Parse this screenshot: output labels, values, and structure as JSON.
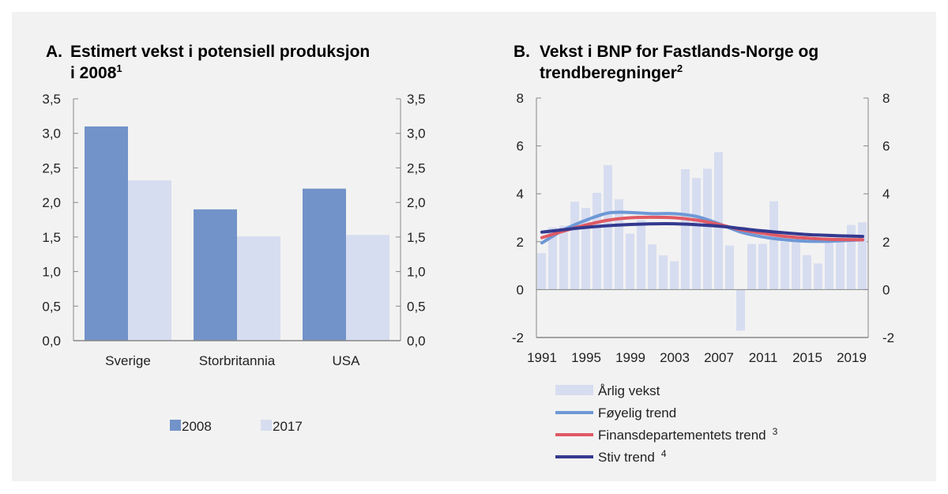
{
  "chart_data": [
    {
      "type": "bar",
      "title_prefix": "A.",
      "title_line1": "Estimert vekst i potensiell produksjon",
      "title_line2": "i 2008",
      "title_sup": "1",
      "categories": [
        "Sverige",
        "Storbritannia",
        "USA"
      ],
      "series": [
        {
          "name": "2008",
          "values": [
            3.1,
            1.9,
            2.2
          ],
          "color": "#7293c9"
        },
        {
          "name": "2017",
          "values": [
            2.32,
            1.51,
            1.53
          ],
          "color": "#d7ddf0"
        }
      ],
      "ylim": [
        0,
        3.5
      ],
      "yticks": [
        "0,0",
        "0,5",
        "1,0",
        "1,5",
        "2,0",
        "2,5",
        "3,0",
        "3,5"
      ],
      "ytick_values": [
        0,
        0.5,
        1,
        1.5,
        2,
        2.5,
        3,
        3.5
      ],
      "legend_position": "bottom",
      "grid": false
    },
    {
      "type": "bar+line",
      "title_prefix": "B.",
      "title_line1": "Vekst i BNP for Fastlands-Norge og",
      "title_line2": "trendberegninger",
      "title_sup": "2",
      "x": [
        1991,
        1992,
        1993,
        1994,
        1995,
        1996,
        1997,
        1998,
        1999,
        2000,
        2001,
        2002,
        2003,
        2004,
        2005,
        2006,
        2007,
        2008,
        2009,
        2010,
        2011,
        2012,
        2013,
        2014,
        2015,
        2016,
        2017,
        2018,
        2019,
        2020
      ],
      "xticks": [
        "1991",
        "1995",
        "1999",
        "2003",
        "2007",
        "2011",
        "2015",
        "2019"
      ],
      "ylim": [
        -2,
        8
      ],
      "yticks": [
        "-2",
        "0",
        "2",
        "4",
        "6",
        "8"
      ],
      "ytick_values": [
        -2,
        0,
        2,
        4,
        6,
        8
      ],
      "bars": {
        "name": "Årlig vekst",
        "color": "#d7ddf0",
        "values": [
          1.52,
          2.6,
          2.67,
          3.67,
          3.41,
          4.04,
          5.2,
          3.77,
          2.34,
          2.9,
          1.89,
          1.43,
          1.18,
          5.03,
          4.66,
          5.05,
          5.74,
          1.84,
          -1.71,
          1.91,
          1.91,
          3.69,
          2.0,
          2.0,
          1.44,
          1.09,
          2.0,
          2.2,
          2.7,
          2.81
        ]
      },
      "lines": [
        {
          "name": "Føyelig trend",
          "sup": "",
          "color": "#6e98d6",
          "x": [
            1991,
            1993,
            1995,
            1997,
            1999,
            2001,
            2003,
            2005,
            2007,
            2009,
            2011,
            2013,
            2015,
            2017,
            2020
          ],
          "values": [
            1.95,
            2.5,
            2.9,
            3.2,
            3.22,
            3.17,
            3.17,
            3.05,
            2.75,
            2.4,
            2.2,
            2.08,
            2.02,
            2.02,
            2.08
          ]
        },
        {
          "name": "Finansdepartementets trend",
          "sup": "3",
          "color": "#e05a64",
          "x": [
            1991,
            1993,
            1995,
            1997,
            1999,
            2001,
            2003,
            2005,
            2007,
            2009,
            2011,
            2013,
            2015,
            2017,
            2020
          ],
          "values": [
            2.17,
            2.45,
            2.7,
            2.9,
            3.0,
            3.02,
            3.0,
            2.9,
            2.72,
            2.5,
            2.35,
            2.22,
            2.15,
            2.1,
            2.08
          ]
        },
        {
          "name": "Stiv trend",
          "sup": "4",
          "color": "#34398f",
          "x": [
            1991,
            1995,
            1999,
            2003,
            2007,
            2009,
            2011,
            2015,
            2020
          ],
          "values": [
            2.4,
            2.6,
            2.72,
            2.75,
            2.65,
            2.55,
            2.45,
            2.3,
            2.22
          ]
        }
      ],
      "legend_position": "bottom",
      "grid": false
    }
  ]
}
